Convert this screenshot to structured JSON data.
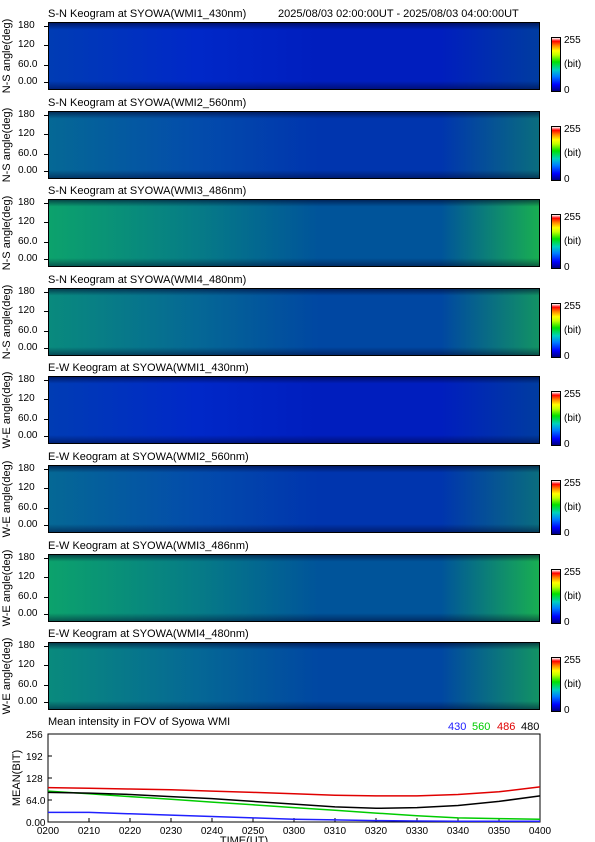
{
  "header": {
    "range": "2025/08/03 02:00:00UT - 2025/08/03 04:00:00UT"
  },
  "keogram": {
    "y_ticks": [
      "180",
      "120",
      "60.0",
      "0.00"
    ],
    "colorbar": {
      "max": "255",
      "unit": "(bit)",
      "min": "0"
    }
  },
  "panels": [
    {
      "title": "S-N Keogram at SYOWA(WMI1_430nm)",
      "ylabel": "N-S angle(deg)",
      "intensity": 0.18
    },
    {
      "title": "S-N Keogram at SYOWA(WMI2_560nm)",
      "ylabel": "N-S angle(deg)",
      "intensity": 0.38
    },
    {
      "title": "S-N Keogram at SYOWA(WMI3_486nm)",
      "ylabel": "N-S angle(deg)",
      "intensity": 0.55
    },
    {
      "title": "S-N Keogram at SYOWA(WMI4_480nm)",
      "ylabel": "N-S angle(deg)",
      "intensity": 0.48
    },
    {
      "title": "E-W Keogram at SYOWA(WMI1_430nm)",
      "ylabel": "W-E angle(deg)",
      "intensity": 0.18
    },
    {
      "title": "E-W Keogram at SYOWA(WMI2_560nm)",
      "ylabel": "W-E angle(deg)",
      "intensity": 0.38
    },
    {
      "title": "E-W Keogram at SYOWA(WMI3_486nm)",
      "ylabel": "W-E angle(deg)",
      "intensity": 0.55
    },
    {
      "title": "E-W Keogram at SYOWA(WMI4_480nm)",
      "ylabel": "W-E angle(deg)",
      "intensity": 0.48
    }
  ],
  "chart_data": {
    "type": "line",
    "title": "Mean intensity in FOV of Syowa WMI",
    "xlabel": "TIME(UT)",
    "ylabel": "MEAN(BIT)",
    "x": [
      "0200",
      "0210",
      "0220",
      "0230",
      "0240",
      "0250",
      "0300",
      "0310",
      "0320",
      "0330",
      "0340",
      "0350",
      "0400"
    ],
    "y_ticks": [
      "256",
      "192",
      "128",
      "64.0",
      "0.00"
    ],
    "ylim": [
      0,
      256
    ],
    "series": [
      {
        "name": "430",
        "color": "#2020ff",
        "values": [
          28,
          28,
          24,
          20,
          16,
          12,
          8,
          6,
          4,
          3,
          2,
          2,
          2
        ]
      },
      {
        "name": "560",
        "color": "#00cc00",
        "values": [
          90,
          82,
          74,
          66,
          58,
          50,
          42,
          34,
          26,
          18,
          12,
          10,
          8
        ]
      },
      {
        "name": "486",
        "color": "#e00000",
        "values": [
          100,
          98,
          96,
          94,
          90,
          86,
          82,
          78,
          76,
          76,
          80,
          88,
          102
        ]
      },
      {
        "name": "480",
        "color": "#000000",
        "values": [
          86,
          84,
          80,
          74,
          68,
          60,
          52,
          44,
          40,
          42,
          48,
          60,
          76
        ]
      }
    ]
  }
}
